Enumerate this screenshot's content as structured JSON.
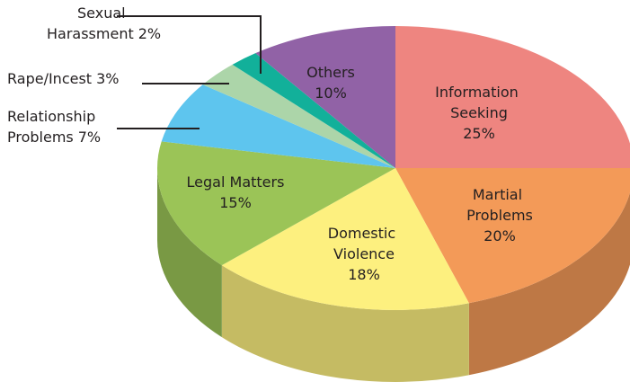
{
  "chart_data": {
    "type": "pie3d",
    "categories": [
      "Information Seeking",
      "Martial Problems",
      "Domestic Violence",
      "Legal Matters",
      "Relationship Problems",
      "Rape/Incest",
      "Sexual Harassment",
      "Others"
    ],
    "values": [
      25,
      20,
      18,
      15,
      7,
      3,
      2,
      10
    ],
    "value_labels": [
      "25%",
      "20%",
      "18%",
      "15%",
      "7%",
      "3%",
      "2%",
      "10%"
    ],
    "colors": [
      "#ee8580",
      "#f39a58",
      "#fdf07f",
      "#9bc457",
      "#5ec5ee",
      "#acd5a9",
      "#12b09a",
      "#9162a6"
    ]
  }
}
